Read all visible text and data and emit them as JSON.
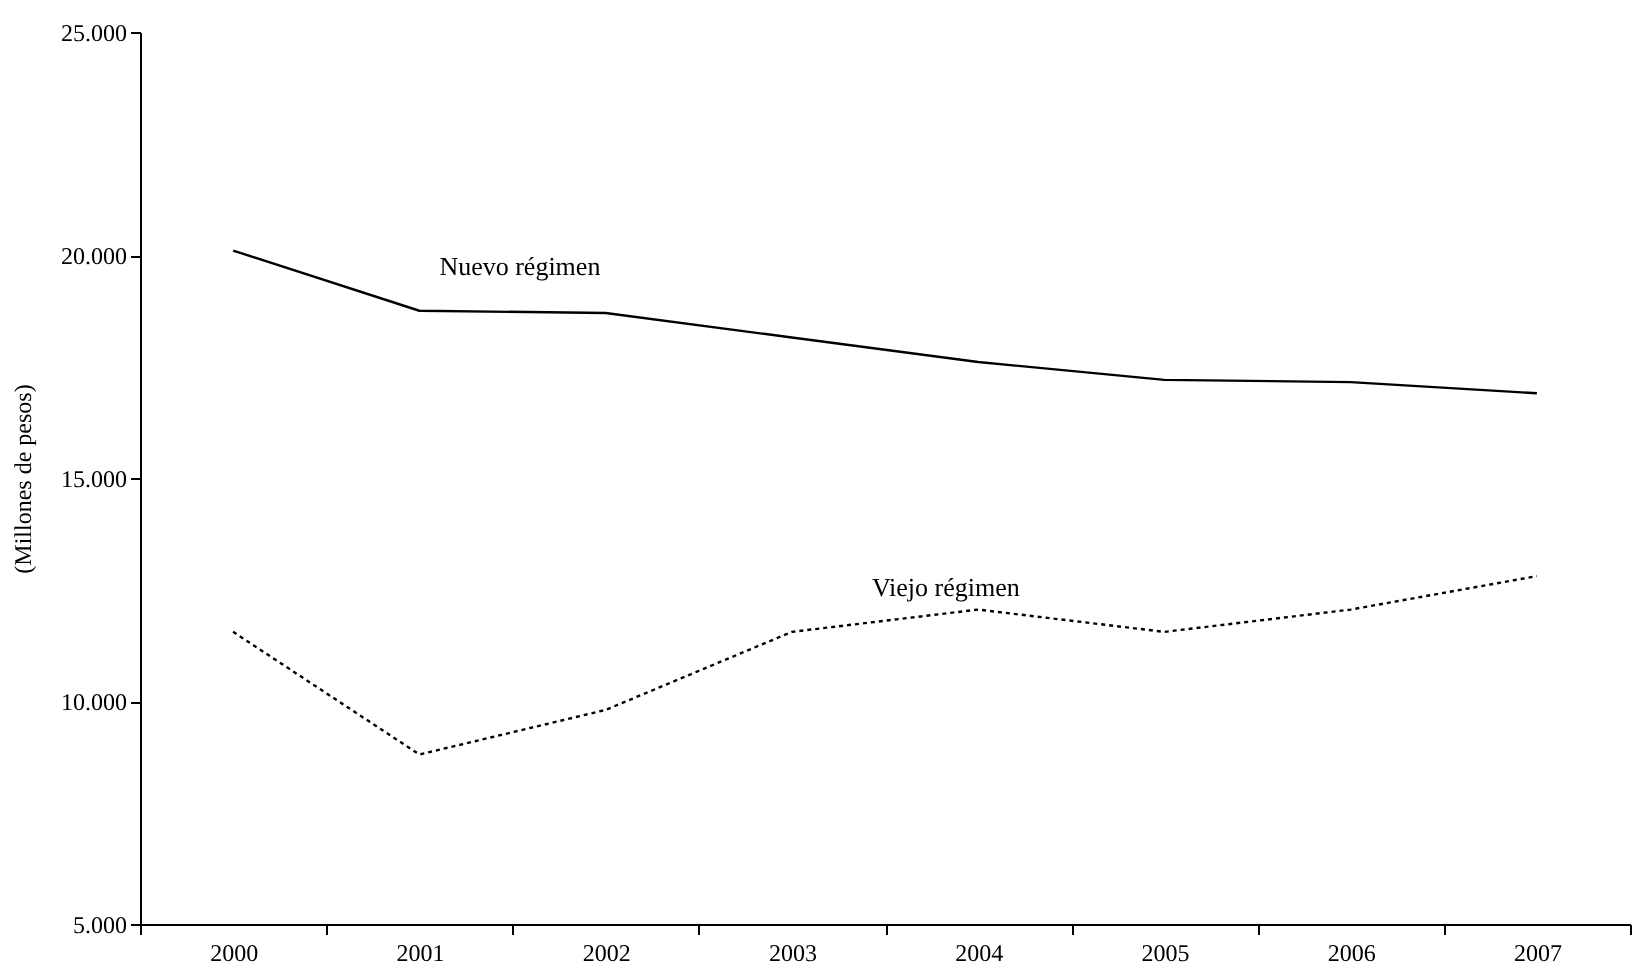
{
  "chart_data": {
    "type": "line",
    "ylabel": "(Millones de pesos)",
    "categories": [
      "2000",
      "2001",
      "2002",
      "2003",
      "2004",
      "2005",
      "2006",
      "2007"
    ],
    "series": [
      {
        "name": "Nuevo régimen",
        "color": "#000000",
        "line_style": "solid",
        "values": [
          20100,
          18750,
          18700,
          18150,
          17600,
          17200,
          17150,
          16900
        ]
      },
      {
        "name": "Viejo régimen",
        "color": "#000000",
        "line_style": "dotted",
        "values": [
          11550,
          8800,
          9800,
          11550,
          12050,
          11550,
          12050,
          12800
        ]
      }
    ],
    "ylim": [
      5000,
      25000
    ],
    "yticks": [
      {
        "value": 5000,
        "label": "5.000"
      },
      {
        "value": 10000,
        "label": "10.000"
      },
      {
        "value": 15000,
        "label": "15.000"
      },
      {
        "value": 20000,
        "label": "20.000"
      },
      {
        "value": 25000,
        "label": "25.000"
      }
    ],
    "grid": false,
    "marker": "none"
  }
}
